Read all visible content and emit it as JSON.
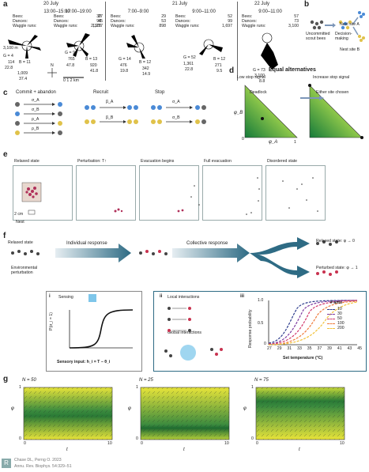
{
  "panel_a": {
    "label": "a",
    "dates": [
      "20 July",
      "21 July",
      "22 July"
    ],
    "sessions": [
      {
        "time": "13:00–15:00",
        "bees": "30",
        "dances": "90",
        "waggle": "2,376"
      },
      {
        "time": "17:00–19:00",
        "bees": "27",
        "dances": "45",
        "waggle": "1,227"
      },
      {
        "time": "7:00–9:00",
        "bees": "29",
        "dances": "53",
        "waggle": "898"
      },
      {
        "time": "9:00–11:00",
        "bees": "52",
        "dances": "99",
        "waggle": "1,697"
      },
      {
        "time": "9:00–11:00",
        "bees": "57",
        "dances": "73",
        "waggle": "3,100"
      }
    ],
    "row_labels": {
      "bees": "Bees:",
      "dances": "Dances:",
      "waggle": "Waggle runs:"
    },
    "scale_text": "0  1  2 km",
    "north": "N",
    "compass_e": "E",
    "compass_w": "W",
    "compass_s": "S",
    "annots": [
      "3,100 m",
      "G = 4",
      "114",
      "22.8",
      "1,009",
      "37.4",
      "B = 11",
      "G = 9",
      "765",
      "47.8",
      "B = 13",
      "920",
      "41.8",
      "G = 14",
      "476",
      "19.8",
      "B = 12",
      "342",
      "14.9",
      "G = 52",
      "1,361",
      "22.8",
      "B = 12",
      "271",
      "9.5",
      "G = 73",
      "3,100",
      "8.8"
    ]
  },
  "panel_b": {
    "label": "b",
    "uncommitted": "Uncommitted scout bees",
    "decision": "Decision-making",
    "siteA": "Nest site A",
    "siteB": "Nest site B"
  },
  "panel_c": {
    "label": "c",
    "commit": "Commit + abandon",
    "recruit": "Recruit",
    "stop": "Stop",
    "rates": [
      "σ_A",
      "σ_B",
      "ρ_A",
      "ρ_B",
      "β_A",
      "β_B",
      "σ_A",
      "σ_B"
    ]
  },
  "panel_d": {
    "label": "d",
    "title": "Equal alternatives",
    "low": "Low stop signal",
    "high": "Increase stop signal",
    "deadlock": "Deadlock",
    "either": "Either site chosen",
    "ylabel": "φ_B",
    "xlabel": "φ_A",
    "ticks": [
      "0",
      "1"
    ]
  },
  "panel_e": {
    "label": "e",
    "titles": [
      "Relaxed state",
      "Perturbation: T↑",
      "Evacuation begins",
      "Full evacuation",
      "Disordered state"
    ],
    "scale": "2 cm",
    "nest": "Nest"
  },
  "panel_f": {
    "label": "f",
    "relaxed_state": "Relaxed state",
    "env": "Environmental perturbation",
    "individual": "Individual response",
    "collective": "Collective response",
    "relaxed_out": "Relaxed state: φ → 0",
    "perturbed_out": "Perturbed state: φ → 1",
    "sub_i": "i",
    "sensing": "Sensing",
    "sub_ii": "ii",
    "local": "Local interactions",
    "global": "Global interactions",
    "sub_iii": "iii",
    "p_axis": "P(σ_i = 1)",
    "sensory": "Sensory input: h_i = T − θ_i",
    "resp_axis": "Response probability",
    "set_temp": "Set temperature (°C)",
    "temp_ticks": [
      "27",
      "29",
      "31",
      "33",
      "35",
      "37",
      "39",
      "41",
      "43",
      "45"
    ],
    "y_ticks": [
      "0",
      "0.5",
      "1.0"
    ],
    "legend_title": "# ants",
    "legend": [
      {
        "n": "10",
        "color": "#2b3a8c"
      },
      {
        "n": "30",
        "color": "#7d3aa0"
      },
      {
        "n": "50",
        "color": "#d23a6e"
      },
      {
        "n": "100",
        "color": "#ef7a3a"
      },
      {
        "n": "200",
        "color": "#f2c23a"
      }
    ]
  },
  "panel_g": {
    "label": "g",
    "plots": [
      {
        "N": "N = 50"
      },
      {
        "N": "N = 25"
      },
      {
        "N": "N = 75"
      }
    ],
    "ylabel": "φ",
    "xlabel": "t",
    "xticks": [
      "0",
      "10"
    ],
    "yticks": [
      "0",
      "1"
    ]
  },
  "footer": {
    "line1": "Chase DL, Perng O. 2023",
    "line2": "Annu. Rev. Biophys. 54:329–51"
  }
}
